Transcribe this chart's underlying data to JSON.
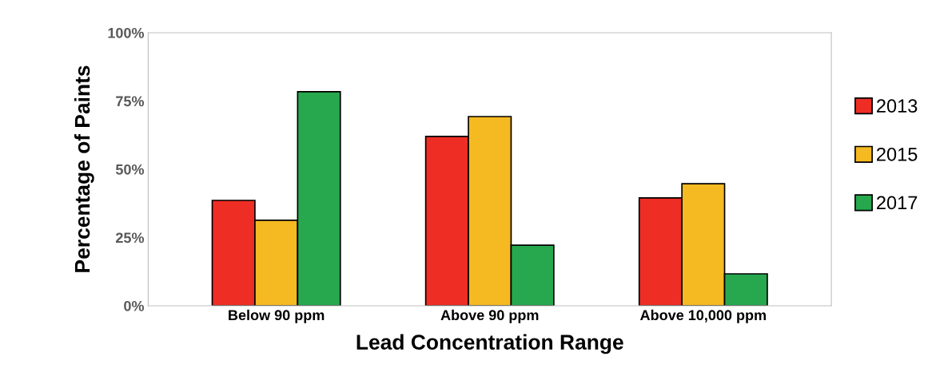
{
  "chart_data": {
    "type": "bar",
    "xlabel": "Lead Concentration Range",
    "ylabel": "Percentage of Paints",
    "categories": [
      "Below 90 ppm",
      "Above 90 ppm",
      "Above 10,000 ppm"
    ],
    "series": [
      {
        "name": "2013",
        "color": "#ee2e24",
        "values": [
          38.6,
          62,
          39.5
        ]
      },
      {
        "name": "2015",
        "color": "#f5b921",
        "values": [
          31.3,
          69.3,
          44.7
        ]
      },
      {
        "name": "2017",
        "color": "#27a84f",
        "values": [
          78.4,
          22.2,
          11.7
        ]
      }
    ],
    "ylim": [
      0,
      100
    ],
    "yticks": [
      {
        "value": 0,
        "label": "0%"
      },
      {
        "value": 25,
        "label": "25%"
      },
      {
        "value": 50,
        "label": "50%"
      },
      {
        "value": 75,
        "label": "75%"
      },
      {
        "value": 100,
        "label": "100%"
      }
    ],
    "grid": false,
    "legend": "right"
  }
}
